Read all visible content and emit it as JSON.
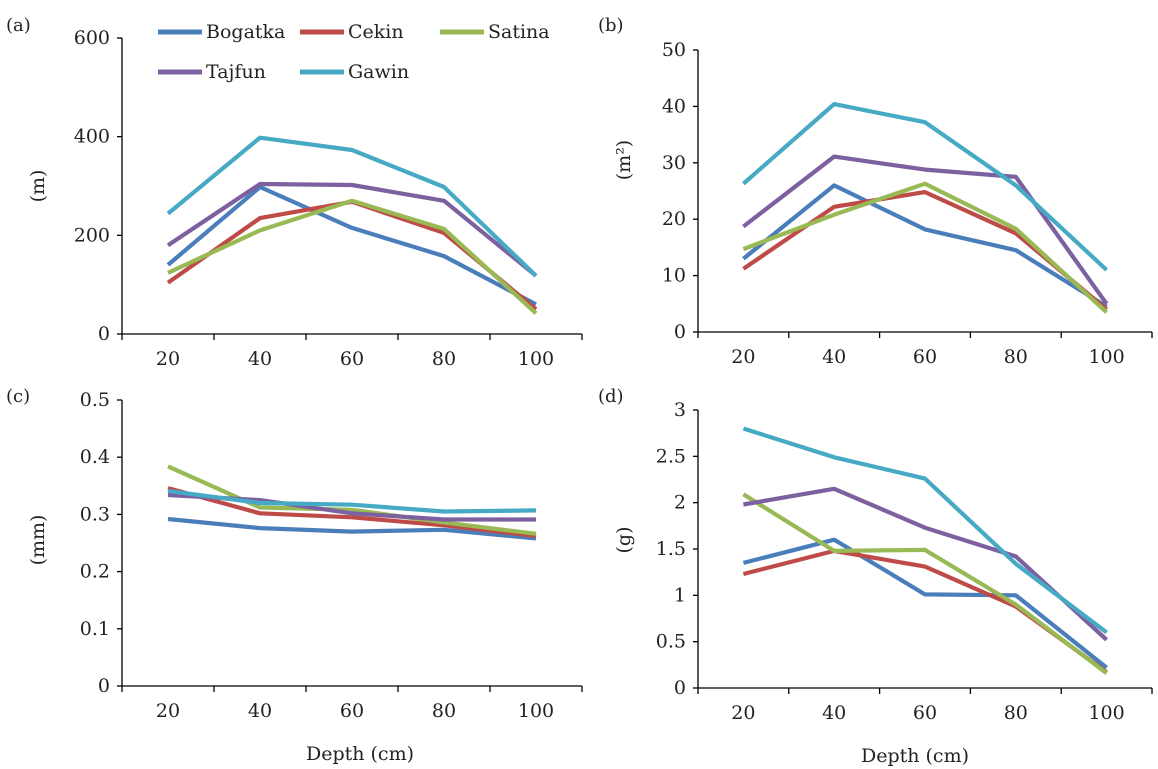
{
  "chart_data": [
    {
      "type": "line",
      "panel_label": "(a)",
      "ylabel": "(m)",
      "xlabel": "",
      "x": [
        20,
        40,
        60,
        80,
        100
      ],
      "ylim": [
        0,
        600
      ],
      "yticks": [
        0,
        200,
        400,
        600
      ],
      "series": [
        {
          "name": "Bogatka",
          "values": [
            140,
            298,
            215,
            158,
            60
          ]
        },
        {
          "name": "Cekin",
          "values": [
            104,
            235,
            268,
            205,
            50
          ]
        },
        {
          "name": "Satina",
          "values": [
            124,
            210,
            270,
            213,
            42
          ]
        },
        {
          "name": "Tajfun",
          "values": [
            180,
            304,
            302,
            270,
            118
          ]
        },
        {
          "name": "Gawin",
          "values": [
            244,
            398,
            373,
            298,
            118
          ]
        }
      ]
    },
    {
      "type": "line",
      "panel_label": "(b)",
      "ylabel": "(m²)",
      "xlabel": "",
      "x": [
        20,
        40,
        60,
        80,
        100
      ],
      "ylim": [
        0,
        50
      ],
      "yticks": [
        0,
        10,
        20,
        30,
        40,
        50
      ],
      "series": [
        {
          "name": "Bogatka",
          "values": [
            13,
            26,
            18.2,
            14.5,
            4.5
          ]
        },
        {
          "name": "Cekin",
          "values": [
            11.2,
            22.2,
            24.8,
            17.5,
            4
          ]
        },
        {
          "name": "Satina",
          "values": [
            14.7,
            20.8,
            26.3,
            18.3,
            3.5
          ]
        },
        {
          "name": "Tajfun",
          "values": [
            18.7,
            31.1,
            28.8,
            27.5,
            5
          ]
        },
        {
          "name": "Gawin",
          "values": [
            26.3,
            40.4,
            37.2,
            26,
            11
          ]
        }
      ]
    },
    {
      "type": "line",
      "panel_label": "(c)",
      "ylabel": "(mm)",
      "xlabel": "Depth (cm)",
      "x": [
        20,
        40,
        60,
        80,
        100
      ],
      "ylim": [
        0,
        0.5
      ],
      "yticks": [
        0,
        0.1,
        0.2,
        0.3,
        0.4,
        0.5
      ],
      "series": [
        {
          "name": "Bogatka",
          "values": [
            0.292,
            0.276,
            0.27,
            0.273,
            0.258
          ]
        },
        {
          "name": "Cekin",
          "values": [
            0.346,
            0.302,
            0.295,
            0.281,
            0.262
          ]
        },
        {
          "name": "Satina",
          "values": [
            0.384,
            0.312,
            0.308,
            0.286,
            0.266
          ]
        },
        {
          "name": "Tajfun",
          "values": [
            0.334,
            0.325,
            0.302,
            0.291,
            0.291
          ]
        },
        {
          "name": "Gawin",
          "values": [
            0.341,
            0.32,
            0.317,
            0.305,
            0.307
          ]
        }
      ]
    },
    {
      "type": "line",
      "panel_label": "(d)",
      "ylabel": "(g)",
      "xlabel": "Depth (cm)",
      "x": [
        20,
        40,
        60,
        80,
        100
      ],
      "ylim": [
        0,
        3
      ],
      "yticks": [
        "0",
        "0.5",
        "1",
        "1.5",
        "2",
        "2.5",
        "3"
      ],
      "series": [
        {
          "name": "Bogatka",
          "values": [
            1.35,
            1.6,
            1.01,
            1.0,
            0.22
          ]
        },
        {
          "name": "Cekin",
          "values": [
            1.23,
            1.48,
            1.31,
            0.88,
            0.17
          ]
        },
        {
          "name": "Satina",
          "values": [
            2.09,
            1.48,
            1.49,
            0.9,
            0.16
          ]
        },
        {
          "name": "Tajfun",
          "values": [
            1.98,
            2.15,
            1.73,
            1.42,
            0.52
          ]
        },
        {
          "name": "Gawin",
          "values": [
            2.8,
            2.49,
            2.26,
            1.34,
            0.6
          ]
        }
      ]
    }
  ],
  "legend": {
    "entries": [
      "Bogatka",
      "Cekin",
      "Satina",
      "Tajfun",
      "Gawin"
    ]
  },
  "colors": {
    "Bogatka": "#4a7ebb",
    "Cekin": "#be4b48",
    "Satina": "#98b954",
    "Tajfun": "#7d60a0",
    "Gawin": "#46aac5",
    "axis": "#000000"
  }
}
